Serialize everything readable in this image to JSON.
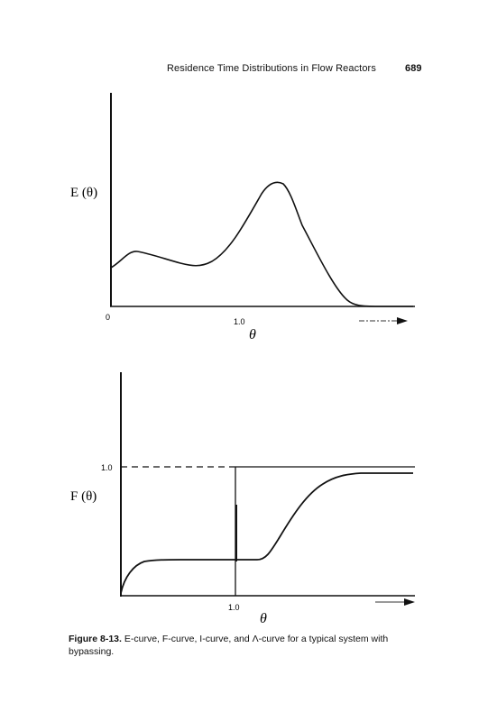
{
  "header": {
    "running_title": "Residence Time Distributions in Flow Reactors",
    "page_number": "689"
  },
  "top_plot": {
    "ylabel": "E (θ)",
    "origin_label": "0",
    "tick_label": "1.0",
    "xlabel": "θ"
  },
  "bottom_plot": {
    "ylabel": "F (θ)",
    "y_tick_label": "1.0",
    "x_tick_label": "1.0",
    "xlabel": "θ"
  },
  "caption": {
    "figure_label": "Figure 8-13.",
    "text": " E-curve, F-curve, I-curve, and Λ-curve for a typical system with bypassing."
  }
}
